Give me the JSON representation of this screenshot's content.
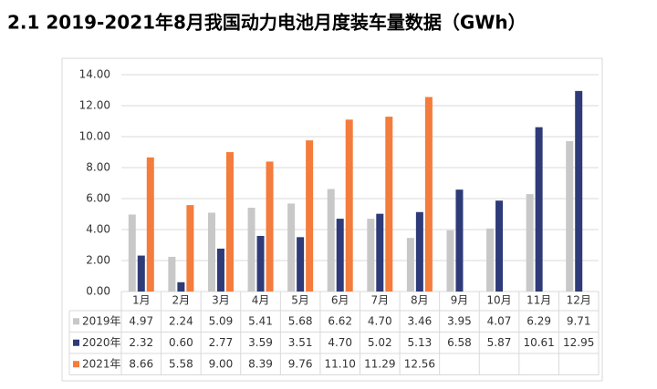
{
  "chart_data": {
    "type": "bar",
    "title": "2.1 2019-2021年8月我国动力电池月度装车量数据（GWh）",
    "categories": [
      "1月",
      "2月",
      "3月",
      "4月",
      "5月",
      "6月",
      "7月",
      "8月",
      "9月",
      "10月",
      "11月",
      "12月"
    ],
    "series": [
      {
        "name": "2019年",
        "color": "#c8c8c8",
        "values": [
          4.97,
          2.24,
          5.09,
          5.41,
          5.68,
          6.62,
          4.7,
          3.46,
          3.95,
          4.07,
          6.29,
          9.71
        ],
        "value_labels": [
          "4.97",
          "2.24",
          "5.09",
          "5.41",
          "5.68",
          "6.62",
          "4.70",
          "3.46",
          "3.95",
          "4.07",
          "6.29",
          "9.71"
        ]
      },
      {
        "name": "2020年",
        "color": "#2e3b78",
        "values": [
          2.32,
          0.6,
          2.77,
          3.59,
          3.51,
          4.7,
          5.02,
          5.13,
          6.58,
          5.87,
          10.61,
          12.95
        ],
        "value_labels": [
          "2.32",
          "0.60",
          "2.77",
          "3.59",
          "3.51",
          "4.70",
          "5.02",
          "5.13",
          "6.58",
          "5.87",
          "10.61",
          "12.95"
        ]
      },
      {
        "name": "2021年",
        "color": "#f47c3c",
        "values": [
          8.66,
          5.58,
          9.0,
          8.39,
          9.76,
          11.1,
          11.29,
          12.56,
          null,
          null,
          null,
          null
        ],
        "value_labels": [
          "8.66",
          "5.58",
          "9.00",
          "8.39",
          "9.76",
          "11.10",
          "11.29",
          "12.56",
          null,
          null,
          null,
          null
        ]
      }
    ],
    "ylim": [
      0,
      14
    ],
    "yticks": [
      {
        "value": 0,
        "label": "0.00"
      },
      {
        "value": 2,
        "label": "2.00"
      },
      {
        "value": 4,
        "label": "4.00"
      },
      {
        "value": 6,
        "label": "6.00"
      },
      {
        "value": 8,
        "label": "8.00"
      },
      {
        "value": 10,
        "label": "10.00"
      },
      {
        "value": 12,
        "label": "12.00"
      },
      {
        "value": 14,
        "label": "14.00"
      }
    ],
    "grid": true
  }
}
